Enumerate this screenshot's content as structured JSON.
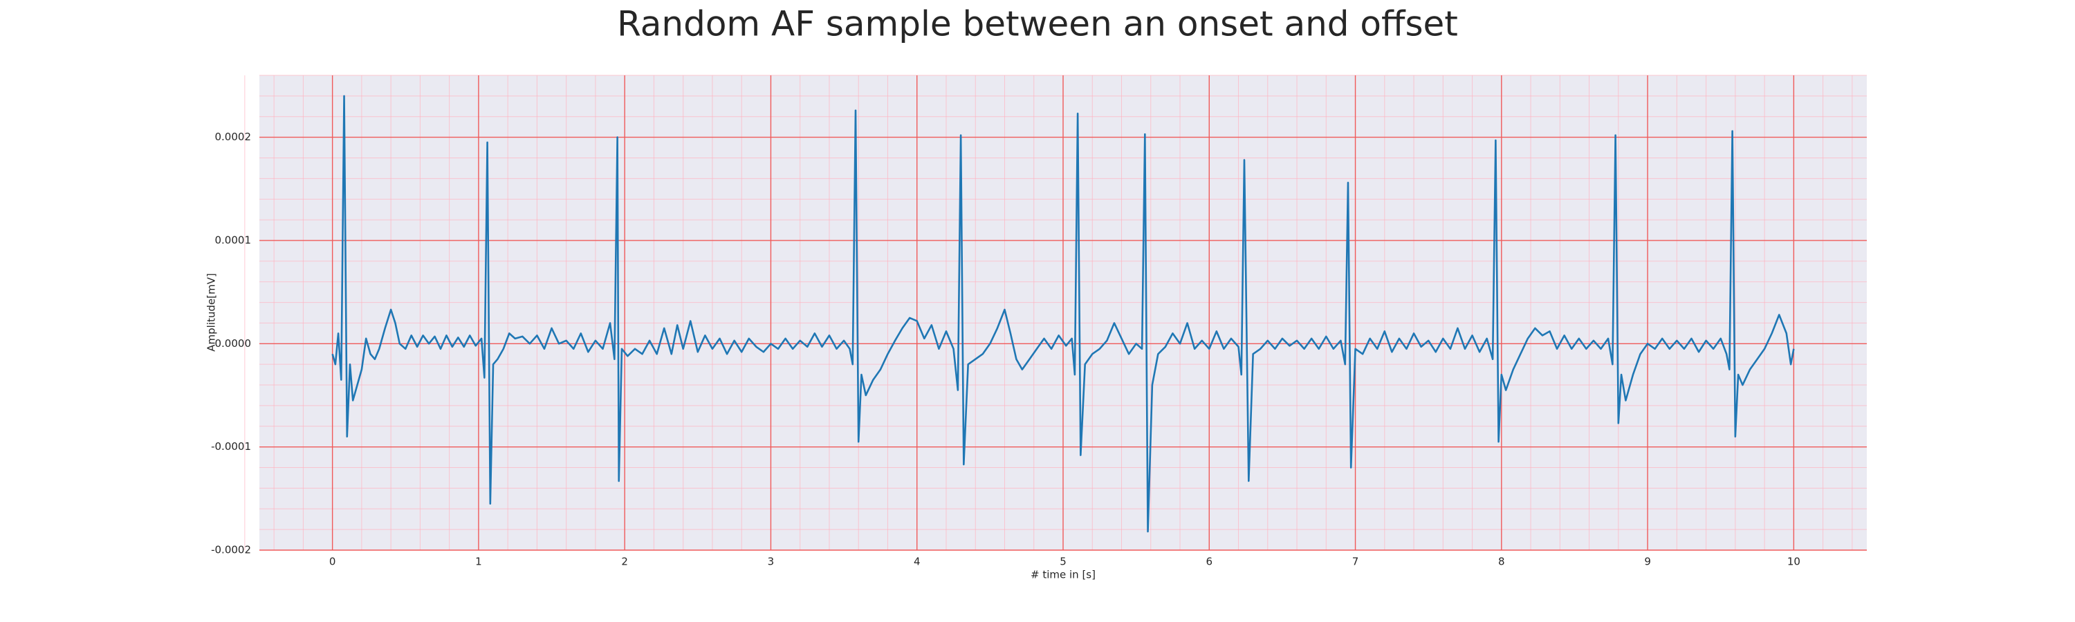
{
  "chart_data": {
    "type": "line",
    "title": "Random AF sample between an onset and offset",
    "xlabel": "# time in [s]",
    "ylabel": "Amplitude[mV]",
    "color": "#1f77b4",
    "grid": true,
    "minor_divisions": 5,
    "xlim": [
      -0.5,
      10.5
    ],
    "ylim": [
      -0.0002,
      0.00026
    ],
    "xticks": [
      0,
      1,
      2,
      3,
      4,
      5,
      6,
      7,
      8,
      9,
      10
    ],
    "yticks": [
      {
        "value": -0.0002,
        "label": "-0.0002"
      },
      {
        "value": -0.0001,
        "label": "-0.0001"
      },
      {
        "value": 0,
        "label": "0.0000"
      },
      {
        "value": 0.0001,
        "label": "0.0001"
      },
      {
        "value": 0.0002,
        "label": "0.0002"
      }
    ],
    "x": [
      0,
      0.02,
      0.04,
      0.06,
      0.08,
      0.1,
      0.12,
      0.14,
      0.17,
      0.2,
      0.23,
      0.26,
      0.29,
      0.32,
      0.36,
      0.4,
      0.43,
      0.46,
      0.5,
      0.54,
      0.58,
      0.62,
      0.66,
      0.7,
      0.74,
      0.78,
      0.82,
      0.86,
      0.9,
      0.94,
      0.98,
      1.02,
      1.04,
      1.06,
      1.08,
      1.1,
      1.13,
      1.17,
      1.21,
      1.25,
      1.3,
      1.35,
      1.4,
      1.45,
      1.5,
      1.55,
      1.6,
      1.65,
      1.7,
      1.75,
      1.8,
      1.85,
      1.9,
      1.93,
      1.95,
      1.96,
      1.98,
      2.02,
      2.07,
      2.12,
      2.17,
      2.22,
      2.27,
      2.32,
      2.36,
      2.4,
      2.45,
      2.5,
      2.55,
      2.6,
      2.65,
      2.7,
      2.75,
      2.8,
      2.85,
      2.9,
      2.95,
      3.0,
      3.05,
      3.1,
      3.15,
      3.2,
      3.25,
      3.3,
      3.35,
      3.4,
      3.45,
      3.5,
      3.54,
      3.56,
      3.58,
      3.6,
      3.62,
      3.65,
      3.7,
      3.75,
      3.8,
      3.85,
      3.9,
      3.95,
      4.0,
      4.05,
      4.1,
      4.15,
      4.2,
      4.25,
      4.28,
      4.3,
      4.32,
      4.35,
      4.4,
      4.45,
      4.5,
      4.55,
      4.6,
      4.64,
      4.68,
      4.72,
      4.77,
      4.82,
      4.87,
      4.92,
      4.97,
      5.02,
      5.06,
      5.08,
      5.1,
      5.12,
      5.15,
      5.2,
      5.25,
      5.3,
      5.35,
      5.4,
      5.45,
      5.5,
      5.54,
      5.56,
      5.58,
      5.61,
      5.65,
      5.7,
      5.75,
      5.8,
      5.85,
      5.9,
      5.95,
      6.0,
      6.05,
      6.1,
      6.15,
      6.2,
      6.22,
      6.24,
      6.27,
      6.3,
      6.35,
      6.4,
      6.45,
      6.5,
      6.55,
      6.6,
      6.65,
      6.7,
      6.75,
      6.8,
      6.85,
      6.9,
      6.93,
      6.95,
      6.97,
      7.0,
      7.05,
      7.1,
      7.15,
      7.2,
      7.25,
      7.3,
      7.35,
      7.4,
      7.45,
      7.5,
      7.55,
      7.6,
      7.65,
      7.7,
      7.75,
      7.8,
      7.85,
      7.9,
      7.94,
      7.96,
      7.98,
      8.0,
      8.03,
      8.08,
      8.13,
      8.18,
      8.23,
      8.28,
      8.33,
      8.38,
      8.43,
      8.48,
      8.53,
      8.58,
      8.63,
      8.68,
      8.73,
      8.76,
      8.78,
      8.8,
      8.82,
      8.85,
      8.9,
      8.95,
      9.0,
      9.05,
      9.1,
      9.15,
      9.2,
      9.25,
      9.3,
      9.35,
      9.4,
      9.45,
      9.5,
      9.54,
      9.56,
      9.58,
      9.6,
      9.62,
      9.65,
      9.7,
      9.75,
      9.8,
      9.85,
      9.9,
      9.95,
      9.98,
      10.0
    ],
    "values": [
      -1e-05,
      -2e-05,
      1e-05,
      -3.5e-05,
      0.00024,
      -9e-05,
      -2e-05,
      -5.5e-05,
      -4e-05,
      -2.5e-05,
      5e-06,
      -1e-05,
      -1.5e-05,
      -5e-06,
      1.5e-05,
      3.3e-05,
      2e-05,
      0,
      -5e-06,
      8e-06,
      -3e-06,
      8e-06,
      0,
      7e-06,
      -5e-06,
      8e-06,
      -3e-06,
      6e-06,
      -3e-06,
      8e-06,
      -2e-06,
      5e-06,
      -3.3e-05,
      0.000195,
      -0.000155,
      -2e-05,
      -1.5e-05,
      -5e-06,
      1e-05,
      5e-06,
      7e-06,
      0,
      8e-06,
      -5e-06,
      1.5e-05,
      0,
      3e-06,
      -5e-06,
      1e-05,
      -8e-06,
      3e-06,
      -5e-06,
      2e-05,
      -1.5e-05,
      0.0002,
      -0.000133,
      -5e-06,
      -1.2e-05,
      -5e-06,
      -1e-05,
      3e-06,
      -1e-05,
      1.5e-05,
      -1e-05,
      1.8e-05,
      -5e-06,
      2.2e-05,
      -8e-06,
      8e-06,
      -5e-06,
      5e-06,
      -1e-05,
      3e-06,
      -8e-06,
      5e-06,
      -3e-06,
      -8e-06,
      0,
      -5e-06,
      5e-06,
      -5e-06,
      3e-06,
      -3e-06,
      1e-05,
      -3e-06,
      8e-06,
      -5e-06,
      3e-06,
      -5e-06,
      -2e-05,
      0.000226,
      -9.5e-05,
      -3e-05,
      -5e-05,
      -3.5e-05,
      -2.5e-05,
      -1e-05,
      3e-06,
      1.5e-05,
      2.5e-05,
      2.2e-05,
      5e-06,
      1.8e-05,
      -5e-06,
      1.2e-05,
      -5e-06,
      -4.5e-05,
      0.000202,
      -0.000117,
      -2e-05,
      -1.5e-05,
      -1e-05,
      0,
      1.5e-05,
      3.3e-05,
      1e-05,
      -1.5e-05,
      -2.5e-05,
      -1.5e-05,
      -5e-06,
      5e-06,
      -5e-06,
      8e-06,
      -2e-06,
      5e-06,
      -3e-05,
      0.000223,
      -0.000108,
      -2e-05,
      -1e-05,
      -5e-06,
      3e-06,
      2e-05,
      5e-06,
      -1e-05,
      0,
      -5e-06,
      0.000203,
      -0.000182,
      -4e-05,
      -1e-05,
      -3e-06,
      1e-05,
      0,
      2e-05,
      -5e-06,
      3e-06,
      -5e-06,
      1.2e-05,
      -5e-06,
      5e-06,
      -3e-06,
      -3e-05,
      0.000178,
      -0.000133,
      -1e-05,
      -5e-06,
      3e-06,
      -5e-06,
      5e-06,
      -2e-06,
      3e-06,
      -5e-06,
      5e-06,
      -5e-06,
      7e-06,
      -5e-06,
      3e-06,
      -2e-05,
      0.000156,
      -0.00012,
      -5e-06,
      -1e-05,
      5e-06,
      -5e-06,
      1.2e-05,
      -8e-06,
      5e-06,
      -5e-06,
      1e-05,
      -3e-06,
      3e-06,
      -8e-06,
      5e-06,
      -5e-06,
      1.5e-05,
      -5e-06,
      8e-06,
      -8e-06,
      5e-06,
      -1.5e-05,
      0.000197,
      -9.5e-05,
      -3e-05,
      -4.5e-05,
      -2.5e-05,
      -1e-05,
      5e-06,
      1.5e-05,
      8e-06,
      1.2e-05,
      -5e-06,
      8e-06,
      -5e-06,
      5e-06,
      -5e-06,
      3e-06,
      -5e-06,
      5e-06,
      -2e-05,
      0.000202,
      -7.7e-05,
      -3e-05,
      -5.5e-05,
      -3e-05,
      -1e-05,
      0,
      -5e-06,
      5e-06,
      -5e-06,
      3e-06,
      -5e-06,
      5e-06,
      -8e-06,
      3e-06,
      -5e-06,
      5e-06,
      -1e-05,
      -2.5e-05,
      0.000206,
      -9e-05,
      -3e-05,
      -4e-05,
      -2.5e-05,
      -1.5e-05,
      -5e-06,
      1e-05,
      2.8e-05,
      1e-05,
      -2e-05,
      -5e-06
    ]
  }
}
